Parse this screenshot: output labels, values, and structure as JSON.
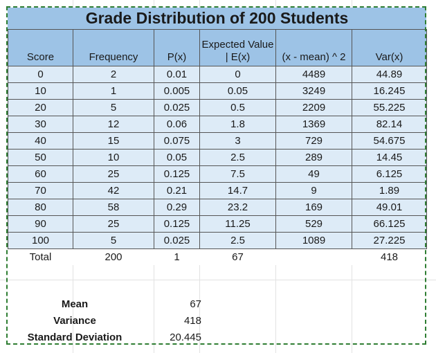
{
  "title": "Grade Distribution of 200 Students",
  "headers": [
    "Score",
    "Frequency",
    "P(x)",
    "Expected Value | E(x)",
    "(x - mean) ^ 2",
    "Var(x)"
  ],
  "rows": [
    [
      "0",
      "2",
      "0.01",
      "0",
      "4489",
      "44.89"
    ],
    [
      "10",
      "1",
      "0.005",
      "0.05",
      "3249",
      "16.245"
    ],
    [
      "20",
      "5",
      "0.025",
      "0.5",
      "2209",
      "55.225"
    ],
    [
      "30",
      "12",
      "0.06",
      "1.8",
      "1369",
      "82.14"
    ],
    [
      "40",
      "15",
      "0.075",
      "3",
      "729",
      "54.675"
    ],
    [
      "50",
      "10",
      "0.05",
      "2.5",
      "289",
      "14.45"
    ],
    [
      "60",
      "25",
      "0.125",
      "7.5",
      "49",
      "6.125"
    ],
    [
      "70",
      "42",
      "0.21",
      "14.7",
      "9",
      "1.89"
    ],
    [
      "80",
      "58",
      "0.29",
      "23.2",
      "169",
      "49.01"
    ],
    [
      "90",
      "25",
      "0.125",
      "11.25",
      "529",
      "66.125"
    ],
    [
      "100",
      "5",
      "0.025",
      "2.5",
      "1089",
      "27.225"
    ]
  ],
  "total": [
    "Total",
    "200",
    "1",
    "67",
    "",
    "418"
  ],
  "summary": [
    {
      "label": "Mean",
      "value": "67"
    },
    {
      "label": "Variance",
      "value": "418"
    },
    {
      "label": "Standard Deviation",
      "value": "20.445"
    }
  ],
  "colors": {
    "header_fill": "#9dc3e6",
    "body_fill": "#ddebf7",
    "frame_border": "#2e7d32"
  }
}
